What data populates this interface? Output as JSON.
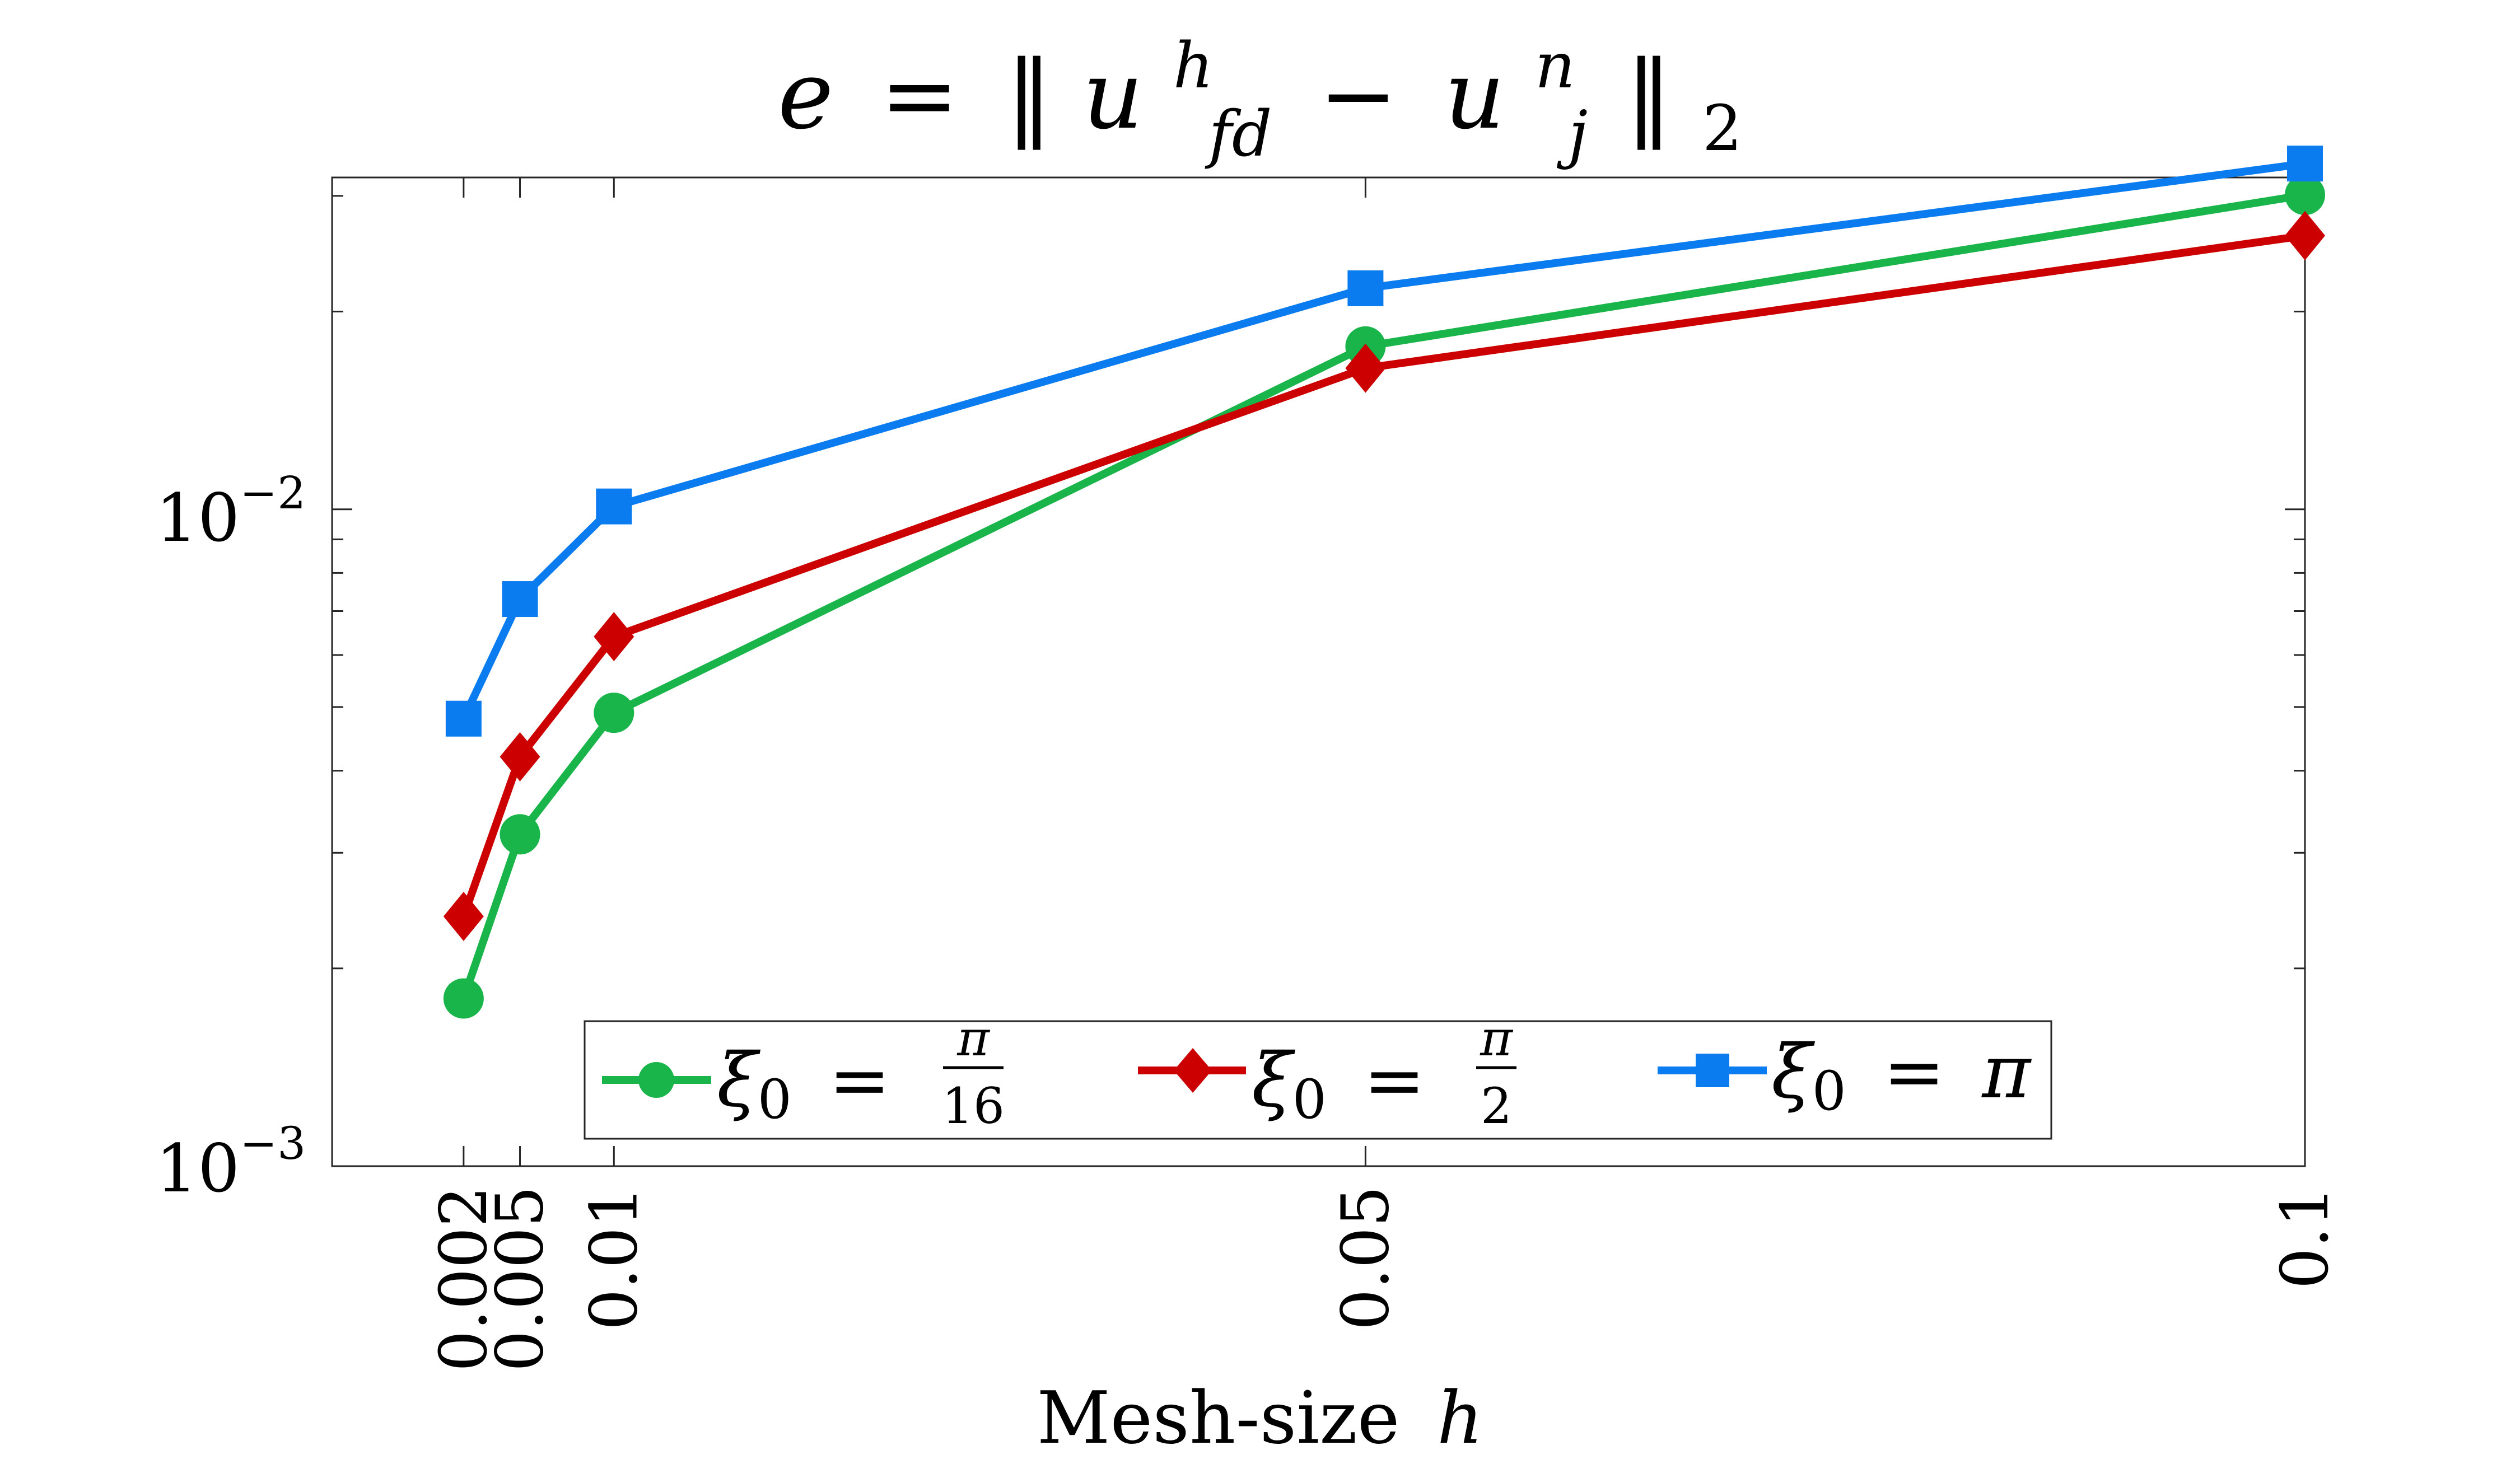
{
  "chart_data": {
    "type": "line",
    "title": "e = ‖u_fd^h − u_j^n‖_2",
    "title_parts": {
      "e": "e",
      "eq": "=",
      "u": "u",
      "sup_h": "h",
      "sub_fd": "fd",
      "minus": "−",
      "sup_n": "n",
      "sub_j": "j",
      "norm": "‖",
      "sub_2": "2"
    },
    "xlabel": "Mesh-size h",
    "xlabel_text": "Mesh-size",
    "xlabel_var": "h",
    "ylabel": "",
    "xscale": "linear",
    "yscale": "log",
    "xlim": [
      -0.005,
      0.1
    ],
    "ylim": [
      0.001,
      0.032
    ],
    "x": [
      0.002,
      0.005,
      0.01,
      0.05,
      0.1
    ],
    "xtick_labels": [
      "0.002",
      "0.005",
      "0.01",
      "0.05",
      "0.1"
    ],
    "ytick_labels": [
      {
        "base": "10",
        "exp": "−2",
        "value": 0.01
      },
      {
        "base": "10",
        "exp": "−3",
        "value": 0.001
      }
    ],
    "grid": false,
    "legend_position": "bottom-center",
    "series": [
      {
        "name": "ξ0 = π/16",
        "label": {
          "sym": "ξ",
          "sub": "0",
          "eq": "=",
          "num": "π",
          "den": "16"
        },
        "color": "#19b44a",
        "marker": "circle",
        "values": [
          0.0018,
          0.0032,
          0.0049,
          0.0177,
          0.0301
        ]
      },
      {
        "name": "ξ0 = π/2",
        "label": {
          "sym": "ξ",
          "sub": "0",
          "eq": "=",
          "num": "π",
          "den": "2"
        },
        "color": "#cc0000",
        "marker": "diamond",
        "values": [
          0.0024,
          0.0042,
          0.0064,
          0.0164,
          0.0261
        ]
      },
      {
        "name": "ξ0 = π",
        "label": {
          "sym": "ξ",
          "sub": "0",
          "eq": "=",
          "text": "π"
        },
        "color": "#0a7cf0",
        "marker": "square",
        "values": [
          0.0048,
          0.0073,
          0.0101,
          0.0217,
          0.0336
        ]
      }
    ]
  }
}
